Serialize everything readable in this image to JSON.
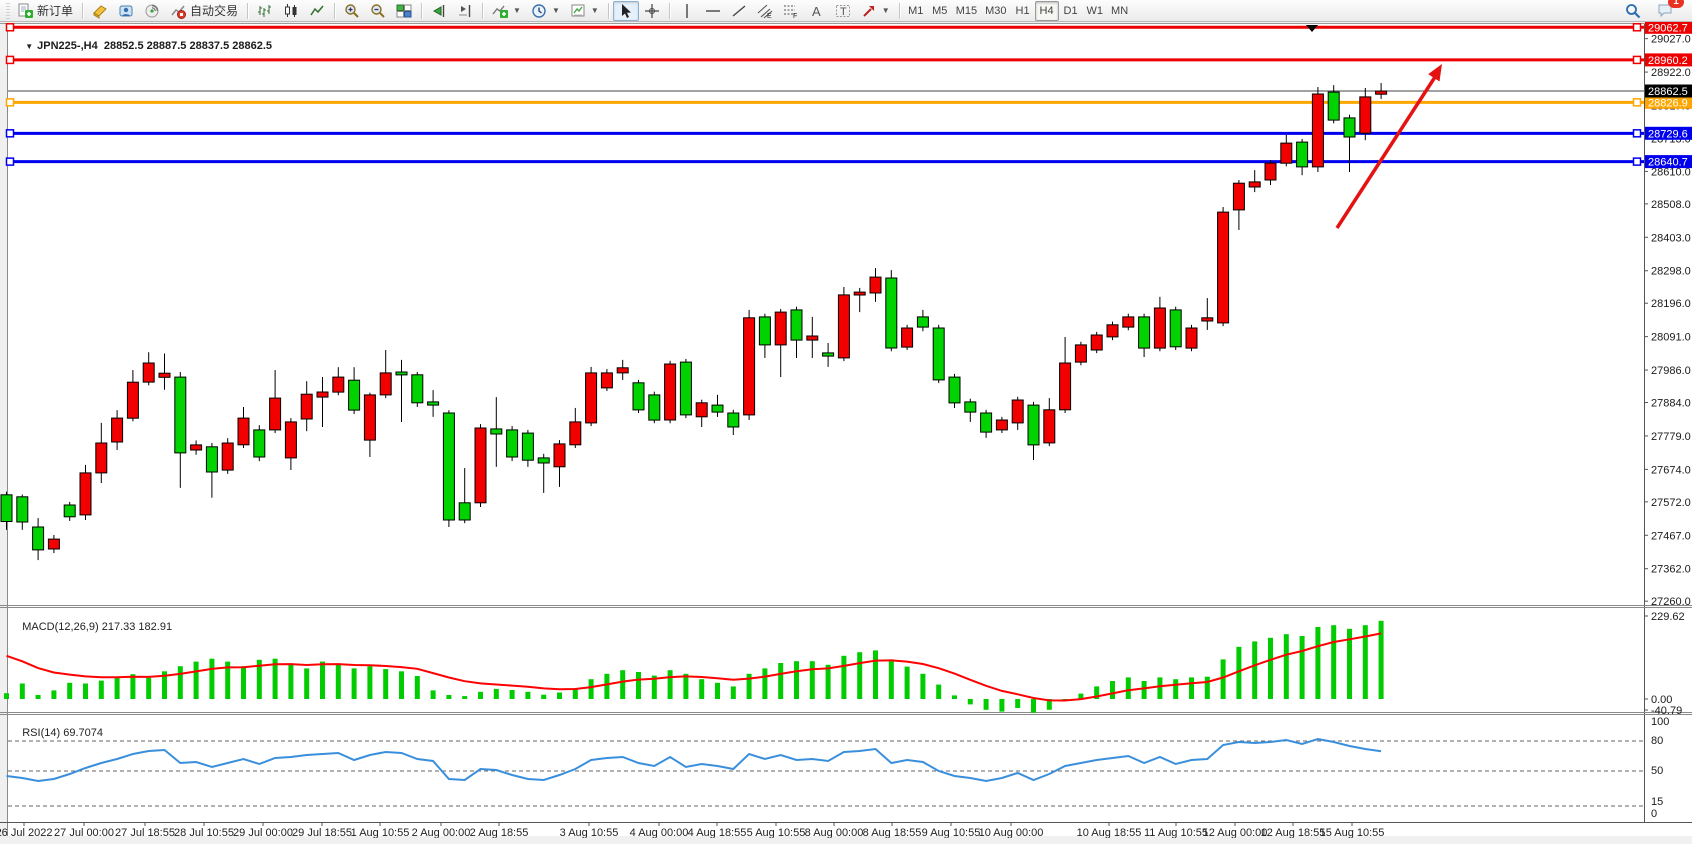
{
  "toolbar": {
    "new_order_label": "新订单",
    "auto_trading_label": "自动交易",
    "timeframes": [
      "M1",
      "M5",
      "M15",
      "M30",
      "H1",
      "H4",
      "D1",
      "W1",
      "MN"
    ],
    "active_timeframe": "H4",
    "notification_count": "1"
  },
  "chart": {
    "symbol_period": "JPN225-,H4",
    "ohlc_text": "28852.5 28887.5 28837.5 28862.5"
  },
  "indicators": {
    "macd": {
      "label": "MACD(12,26,9)",
      "values_text": "217.33 182.91",
      "axis_labels": [
        "229.62",
        "0.00",
        "-40.79"
      ]
    },
    "rsi": {
      "label": "RSI(14)",
      "value_text": "69.7074",
      "axis_labels": [
        "100",
        "80",
        "50",
        "15",
        "0"
      ],
      "level_lines": [
        80,
        50,
        15
      ]
    }
  },
  "bid": {
    "label": "28862.5",
    "value": 28862.5
  },
  "levels": [
    {
      "label": "29062.7",
      "value": 29062.7,
      "color": "#ee0000"
    },
    {
      "label": "28960.2",
      "value": 28960.2,
      "color": "#ee0000"
    },
    {
      "label": "28826.9",
      "value": 28826.9,
      "color": "#ffa600"
    },
    {
      "label": "28729.6",
      "value": 28729.6,
      "color": "#0000ee"
    },
    {
      "label": "28640.7",
      "value": 28640.7,
      "color": "#0000ee"
    }
  ],
  "price_axis_ticks": [
    "29027.0",
    "28922.0",
    "28817.0",
    "28713.0",
    "28610.0",
    "28508.0",
    "28403.0",
    "28298.0",
    "28196.0",
    "28091.0",
    "27986.0",
    "27884.0",
    "27779.0",
    "27674.0",
    "27572.0",
    "27467.0",
    "27362.0",
    "27260.0"
  ],
  "chart_data": {
    "type": "candlestick",
    "title": "JPN225-,H4",
    "ylim": [
      27248,
      29073
    ],
    "x_tick_labels": [
      "26 Jul 2022",
      "27 Jul 00:00",
      "27 Jul 18:55",
      "28 Jul 10:55",
      "29 Jul 00:00",
      "29 Jul 18:55",
      "1 Aug 10:55",
      "2 Aug 00:00",
      "2 Aug 18:55",
      "3 Aug 10:55",
      "4 Aug 00:00",
      "4 Aug 18:55",
      "5 Aug 10:55",
      "8 Aug 00:00",
      "8 Aug 18:55",
      "9 Aug 10:55",
      "10 Aug 00:00",
      "10 Aug 18:55",
      "11 Aug 10:55",
      "12 Aug 00:00",
      "12 Aug 18:55",
      "15 Aug 10:55"
    ],
    "up_color": "#f20000",
    "down_color": "#00d300",
    "candles": [
      [
        27594,
        27604,
        27484,
        27510
      ],
      [
        27588,
        27595,
        27484,
        27509
      ],
      [
        27493,
        27521,
        27389,
        27421
      ],
      [
        27424,
        27468,
        27411,
        27455
      ],
      [
        27562,
        27572,
        27512,
        27525
      ],
      [
        27531,
        27688,
        27515,
        27663
      ],
      [
        27663,
        27820,
        27631,
        27757
      ],
      [
        27760,
        27860,
        27735,
        27835
      ],
      [
        27835,
        27986,
        27825,
        27948
      ],
      [
        27948,
        28042,
        27938,
        28008
      ],
      [
        27963,
        28038,
        27924,
        27976
      ],
      [
        27964,
        27980,
        27616,
        27726
      ],
      [
        27735,
        27765,
        27720,
        27751
      ],
      [
        27745,
        27757,
        27585,
        27666
      ],
      [
        27672,
        27772,
        27660,
        27757
      ],
      [
        27751,
        27870,
        27741,
        27835
      ],
      [
        27798,
        27813,
        27700,
        27713
      ],
      [
        27798,
        27986,
        27788,
        27898
      ],
      [
        27710,
        27835,
        27672,
        27823
      ],
      [
        27832,
        27951,
        27794,
        27910
      ],
      [
        27901,
        27964,
        27807,
        27917
      ],
      [
        27917,
        27995,
        27907,
        27964
      ],
      [
        27954,
        27995,
        27848,
        27860
      ],
      [
        27766,
        27915,
        27713,
        27908
      ],
      [
        27908,
        28049,
        27898,
        27977
      ],
      [
        27980,
        28018,
        27823,
        27971
      ],
      [
        27971,
        27980,
        27870,
        27883
      ],
      [
        27886,
        27923,
        27839,
        27876
      ],
      [
        27851,
        27860,
        27493,
        27515
      ],
      [
        27569,
        27678,
        27505,
        27515
      ],
      [
        27569,
        27816,
        27556,
        27804
      ],
      [
        27801,
        27901,
        27682,
        27785
      ],
      [
        27798,
        27810,
        27700,
        27713
      ],
      [
        27788,
        27798,
        27682,
        27703
      ],
      [
        27710,
        27723,
        27600,
        27694
      ],
      [
        27682,
        27766,
        27619,
        27754
      ],
      [
        27751,
        27867,
        27741,
        27823
      ],
      [
        27820,
        27996,
        27810,
        27977
      ],
      [
        27930,
        27989,
        27920,
        27977
      ],
      [
        27977,
        28018,
        27955,
        27993
      ],
      [
        27946,
        27955,
        27851,
        27861
      ],
      [
        27908,
        27918,
        27819,
        27829
      ],
      [
        27829,
        28015,
        27819,
        28005
      ],
      [
        28011,
        28021,
        27835,
        27845
      ],
      [
        27839,
        27893,
        27807,
        27883
      ],
      [
        27876,
        27908,
        27839,
        27854
      ],
      [
        27851,
        27861,
        27782,
        27807
      ],
      [
        27845,
        28175,
        27829,
        28150
      ],
      [
        28153,
        28163,
        28024,
        28065
      ],
      [
        28065,
        28178,
        27964,
        28168
      ],
      [
        28175,
        28185,
        28024,
        28080
      ],
      [
        28080,
        28153,
        28024,
        28093
      ],
      [
        28040,
        28071,
        27996,
        28030
      ],
      [
        28024,
        28247,
        28014,
        28222
      ],
      [
        28222,
        28244,
        28168,
        28231
      ],
      [
        28228,
        28306,
        28200,
        28278
      ],
      [
        28275,
        28300,
        28045,
        28055
      ],
      [
        28058,
        28128,
        28049,
        28118
      ],
      [
        28153,
        28175,
        28108,
        28121
      ],
      [
        28118,
        28128,
        27945,
        27955
      ],
      [
        27964,
        27974,
        27867,
        27883
      ],
      [
        27886,
        27896,
        27823,
        27854
      ],
      [
        27851,
        27861,
        27773,
        27791
      ],
      [
        27798,
        27839,
        27788,
        27829
      ],
      [
        27820,
        27902,
        27798,
        27892
      ],
      [
        27876,
        27886,
        27703,
        27751
      ],
      [
        27757,
        27898,
        27747,
        27861
      ],
      [
        27861,
        28090,
        27851,
        28008
      ],
      [
        28011,
        28075,
        28001,
        28065
      ],
      [
        28049,
        28106,
        28039,
        28096
      ],
      [
        28090,
        28138,
        28080,
        28128
      ],
      [
        28121,
        28163,
        28111,
        28153
      ],
      [
        28153,
        28163,
        28027,
        28055
      ],
      [
        28055,
        28216,
        28045,
        28181
      ],
      [
        28175,
        28185,
        28049,
        28059
      ],
      [
        28055,
        28128,
        28045,
        28118
      ],
      [
        28140,
        28212,
        28112,
        28150
      ],
      [
        28134,
        28498,
        28124,
        28482
      ],
      [
        28489,
        28583,
        28426,
        28573
      ],
      [
        28561,
        28614,
        28545,
        28577
      ],
      [
        28583,
        28646,
        28567,
        28636
      ],
      [
        28636,
        28725,
        28626,
        28699
      ],
      [
        28702,
        28712,
        28598,
        28624
      ],
      [
        28624,
        28875,
        28608,
        28853
      ],
      [
        28859,
        28881,
        28761,
        28771
      ],
      [
        28778,
        28788,
        28608,
        28718
      ],
      [
        28730,
        28872,
        28708,
        28844
      ],
      [
        28852.5,
        28887.5,
        28837.5,
        28862.5
      ]
    ],
    "macd_histogram": [
      16,
      43,
      11,
      24,
      45,
      43,
      51,
      59,
      69,
      59,
      77,
      91,
      104,
      112,
      104,
      91,
      109,
      112,
      99,
      85,
      104,
      99,
      85,
      91,
      83,
      77,
      64,
      24,
      11,
      8,
      20,
      28,
      25,
      20,
      12,
      18,
      30,
      55,
      70,
      80,
      75,
      65,
      80,
      70,
      55,
      45,
      35,
      70,
      85,
      100,
      105,
      105,
      95,
      120,
      130,
      135,
      110,
      90,
      70,
      40,
      10,
      -15,
      -30,
      -35,
      -25,
      -38,
      -30,
      -5,
      15,
      35,
      50,
      60,
      50,
      60,
      55,
      60,
      62,
      110,
      145,
      160,
      170,
      180,
      175,
      200,
      205,
      195,
      205,
      217.33
    ],
    "macd_current": 217.33,
    "macd_signal_current": 182.91,
    "rsi": [
      45,
      43,
      40,
      42,
      47,
      53,
      58,
      62,
      67,
      70,
      71,
      58,
      59,
      54,
      58,
      62,
      57,
      63,
      64,
      66,
      67,
      68,
      61,
      66,
      69,
      68,
      62,
      60,
      42,
      41,
      52,
      51,
      46,
      42,
      41,
      46,
      52,
      61,
      63,
      64,
      58,
      55,
      64,
      54,
      57,
      55,
      52,
      67,
      62,
      66,
      61,
      62,
      60,
      69,
      70,
      72,
      58,
      61,
      59,
      50,
      45,
      43,
      40,
      43,
      48,
      41,
      47,
      55,
      58,
      61,
      63,
      65,
      58,
      64,
      57,
      61,
      62,
      76,
      79,
      78,
      79,
      81,
      77,
      82,
      79,
      75,
      72,
      69.7
    ],
    "rsi_current": 69.7074
  },
  "annotations": {
    "trend_arrow": {
      "color": "#e51212",
      "direction": "up-right"
    },
    "top_marker_color": "#000000"
  }
}
